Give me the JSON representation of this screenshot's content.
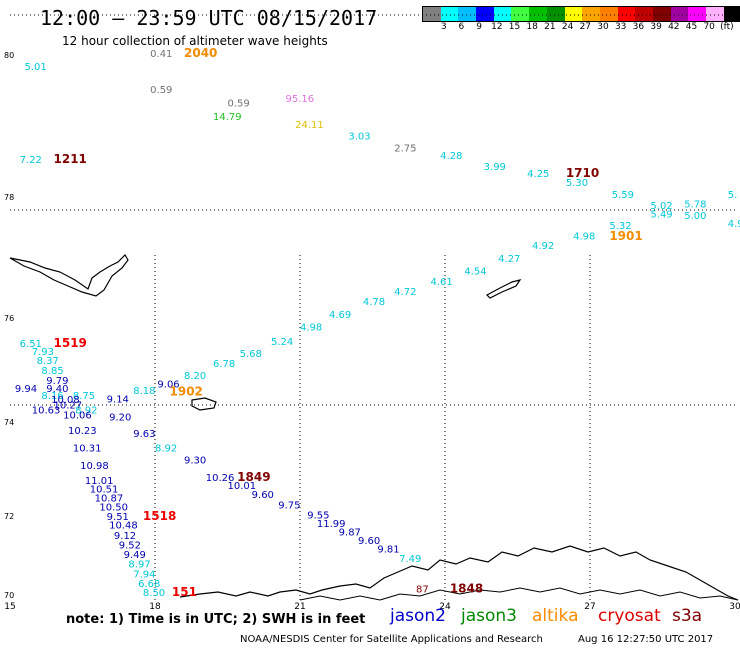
{
  "header": {
    "title": "12:00 – 23:59 UTC 08/15/2017",
    "subtitle": "12 hour collection of altimeter wave heights"
  },
  "colorbar": {
    "colors": [
      "#808080",
      "#00ffff",
      "#00bfff",
      "#0000ff",
      "#00ffff",
      "#40ff40",
      "#00c000",
      "#009000",
      "#ffff00",
      "#ffa500",
      "#ff8000",
      "#ff0000",
      "#c00000",
      "#800000",
      "#a000a0",
      "#ff00ff",
      "#ffb0ff",
      "#000000"
    ],
    "labels": [
      "3",
      "6",
      "9",
      "12",
      "15",
      "18",
      "21",
      "24",
      "27",
      "30",
      "33",
      "36",
      "39",
      "42",
      "45",
      "70",
      "(ft)"
    ]
  },
  "map": {
    "lon_ticks": [
      "15",
      "18",
      "21",
      "24",
      "27",
      "30"
    ],
    "lat_ticks": [
      "70",
      "72",
      "74",
      "76",
      "78",
      "80"
    ],
    "lat_labels_display": [
      "70",
      "72",
      "74",
      "76",
      "78",
      "80"
    ]
  },
  "observations": [
    {
      "t": "5.01",
      "lon": 15.3,
      "lat": 80.95,
      "c": "cyan"
    },
    {
      "t": "0.41",
      "lon": 17.9,
      "lat": 81.3,
      "c": "gray"
    },
    {
      "t": "2040",
      "lon": 18.6,
      "lat": 81.3,
      "c": "orange",
      "b": true
    },
    {
      "t": "0.59",
      "lon": 17.9,
      "lat": 80.4,
      "c": "gray"
    },
    {
      "t": "0.59",
      "lon": 19.5,
      "lat": 80.25,
      "c": "gray"
    },
    {
      "t": "14.79",
      "lon": 19.2,
      "lat": 80.1,
      "c": "green"
    },
    {
      "t": "95.16",
      "lon": 20.7,
      "lat": 80.3,
      "c": "violet"
    },
    {
      "t": "24.11",
      "lon": 20.9,
      "lat": 80.0,
      "c": "yellow"
    },
    {
      "t": "3.03",
      "lon": 22.0,
      "lat": 79.85,
      "c": "cyan"
    },
    {
      "t": "2.75",
      "lon": 22.95,
      "lat": 79.7,
      "c": "gray"
    },
    {
      "t": "4.28",
      "lon": 23.9,
      "lat": 79.6,
      "c": "cyan"
    },
    {
      "t": "3.99",
      "lon": 24.8,
      "lat": 79.45,
      "c": "cyan"
    },
    {
      "t": "4.25",
      "lon": 25.7,
      "lat": 79.35,
      "c": "cyan"
    },
    {
      "t": "1710",
      "lon": 26.5,
      "lat": 79.35,
      "c": "darkred",
      "b": true
    },
    {
      "t": "5.30",
      "lon": 26.5,
      "lat": 79.22,
      "c": "cyan"
    },
    {
      "t": "5.59",
      "lon": 27.45,
      "lat": 79.05,
      "c": "cyan"
    },
    {
      "t": "5.02",
      "lon": 28.25,
      "lat": 78.9,
      "c": "cyan"
    },
    {
      "t": "5.78",
      "lon": 28.95,
      "lat": 78.92,
      "c": "cyan"
    },
    {
      "t": "5.49",
      "lon": 28.25,
      "lat": 78.78,
      "c": "cyan"
    },
    {
      "t": "5.00",
      "lon": 28.95,
      "lat": 78.76,
      "c": "cyan"
    },
    {
      "t": "5.",
      "lon": 29.85,
      "lat": 79.05,
      "c": "cyan"
    },
    {
      "t": "4.9",
      "lon": 29.85,
      "lat": 78.65,
      "c": "cyan"
    },
    {
      "t": "7.22",
      "lon": 15.2,
      "lat": 79.55,
      "c": "cyan"
    },
    {
      "t": "1211",
      "lon": 15.9,
      "lat": 79.55,
      "c": "darkred",
      "b": true
    },
    {
      "t": "5.32",
      "lon": 27.4,
      "lat": 78.62,
      "c": "cyan"
    },
    {
      "t": "1901",
      "lon": 27.4,
      "lat": 78.47,
      "c": "orange",
      "b": true
    },
    {
      "t": "4.98",
      "lon": 26.65,
      "lat": 78.48,
      "c": "cyan"
    },
    {
      "t": "4.92",
      "lon": 25.8,
      "lat": 78.32,
      "c": "cyan"
    },
    {
      "t": "4.27",
      "lon": 25.1,
      "lat": 78.1,
      "c": "cyan"
    },
    {
      "t": "4.54",
      "lon": 24.4,
      "lat": 77.95,
      "c": "cyan"
    },
    {
      "t": "4.61",
      "lon": 23.7,
      "lat": 77.82,
      "c": "cyan"
    },
    {
      "t": "4.72",
      "lon": 22.95,
      "lat": 77.7,
      "c": "cyan"
    },
    {
      "t": "4.78",
      "lon": 22.3,
      "lat": 77.58,
      "c": "cyan"
    },
    {
      "t": "4.69",
      "lon": 21.6,
      "lat": 77.42,
      "c": "cyan"
    },
    {
      "t": "4.98",
      "lon": 21.0,
      "lat": 77.28,
      "c": "cyan"
    },
    {
      "t": "5.24",
      "lon": 20.4,
      "lat": 77.12,
      "c": "cyan"
    },
    {
      "t": "5.68",
      "lon": 19.75,
      "lat": 76.95,
      "c": "cyan"
    },
    {
      "t": "6.78",
      "lon": 19.2,
      "lat": 76.8,
      "c": "cyan"
    },
    {
      "t": "8.20",
      "lon": 18.6,
      "lat": 76.62,
      "c": "cyan"
    },
    {
      "t": "9.06",
      "lon": 18.05,
      "lat": 76.5,
      "c": "blue"
    },
    {
      "t": "8.18",
      "lon": 17.55,
      "lat": 76.4,
      "c": "cyan"
    },
    {
      "t": "1902",
      "lon": 18.3,
      "lat": 76.38,
      "c": "orange",
      "b": true
    },
    {
      "t": "9.14",
      "lon": 17.0,
      "lat": 76.28,
      "c": "blue"
    },
    {
      "t": "6.51",
      "lon": 15.2,
      "lat": 77.1,
      "c": "cyan"
    },
    {
      "t": "1519",
      "lon": 15.9,
      "lat": 77.1,
      "c": "red",
      "b": true
    },
    {
      "t": "7.93",
      "lon": 15.45,
      "lat": 76.98,
      "c": "cyan"
    },
    {
      "t": "8.37",
      "lon": 15.55,
      "lat": 76.85,
      "c": "cyan"
    },
    {
      "t": "8.85",
      "lon": 15.65,
      "lat": 76.7,
      "c": "cyan"
    },
    {
      "t": "9.79",
      "lon": 15.75,
      "lat": 76.55,
      "c": "blue"
    },
    {
      "t": "9.94",
      "lon": 15.1,
      "lat": 76.43,
      "c": "blue"
    },
    {
      "t": "9.40",
      "lon": 15.75,
      "lat": 76.43,
      "c": "blue"
    },
    {
      "t": "8.75",
      "lon": 16.3,
      "lat": 76.33,
      "c": "cyan"
    },
    {
      "t": "8.16",
      "lon": 15.65,
      "lat": 76.33,
      "c": "cyan"
    },
    {
      "t": "10.08",
      "lon": 15.85,
      "lat": 76.27,
      "c": "blue"
    },
    {
      "t": "10.27",
      "lon": 15.9,
      "lat": 76.19,
      "c": "blue"
    },
    {
      "t": "8.92",
      "lon": 16.35,
      "lat": 76.12,
      "c": "cyan"
    },
    {
      "t": "10.63",
      "lon": 15.45,
      "lat": 76.12,
      "c": "blue"
    },
    {
      "t": "10.06",
      "lon": 16.1,
      "lat": 76.05,
      "c": "blue"
    },
    {
      "t": "9.20",
      "lon": 17.05,
      "lat": 76.02,
      "c": "blue"
    },
    {
      "t": "10.23",
      "lon": 16.2,
      "lat": 75.92,
      "c": "blue"
    },
    {
      "t": "9.63",
      "lon": 17.55,
      "lat": 75.9,
      "c": "blue"
    },
    {
      "t": "10.31",
      "lon": 16.3,
      "lat": 75.8,
      "c": "blue"
    },
    {
      "t": "8.92",
      "lon": 18.0,
      "lat": 75.8,
      "c": "cyan"
    },
    {
      "t": "9.30",
      "lon": 18.6,
      "lat": 75.72,
      "c": "blue"
    },
    {
      "t": "10.98",
      "lon": 16.45,
      "lat": 75.68,
      "c": "blue"
    },
    {
      "t": "11.01",
      "lon": 16.55,
      "lat": 75.56,
      "c": "blue"
    },
    {
      "t": "10.26",
      "lon": 19.05,
      "lat": 75.6,
      "c": "blue"
    },
    {
      "t": "1849",
      "lon": 19.7,
      "lat": 75.6,
      "c": "darkred",
      "b": true
    },
    {
      "t": "10.51",
      "lon": 16.65,
      "lat": 75.45,
      "c": "blue"
    },
    {
      "t": "10.01",
      "lon": 19.5,
      "lat": 75.5,
      "c": "blue"
    },
    {
      "t": "10.87",
      "lon": 16.75,
      "lat": 75.34,
      "c": "blue"
    },
    {
      "t": "9.60",
      "lon": 20.0,
      "lat": 75.38,
      "c": "blue"
    },
    {
      "t": "10.50",
      "lon": 16.85,
      "lat": 75.22,
      "c": "blue"
    },
    {
      "t": "9.75",
      "lon": 20.55,
      "lat": 75.25,
      "c": "blue"
    },
    {
      "t": "9.51",
      "lon": 17.0,
      "lat": 75.1,
      "c": "blue"
    },
    {
      "t": "1518",
      "lon": 17.75,
      "lat": 75.1,
      "c": "red",
      "b": true
    },
    {
      "t": "9.55",
      "lon": 21.15,
      "lat": 75.12,
      "c": "blue"
    },
    {
      "t": "10.48",
      "lon": 17.05,
      "lat": 75.0,
      "c": "blue"
    },
    {
      "t": "11.99",
      "lon": 21.35,
      "lat": 75.02,
      "c": "blue"
    },
    {
      "t": "9.12",
      "lon": 17.15,
      "lat": 74.88,
      "c": "blue"
    },
    {
      "t": "9.87",
      "lon": 21.8,
      "lat": 74.92,
      "c": "blue"
    },
    {
      "t": "9.52",
      "lon": 17.25,
      "lat": 74.77,
      "c": "blue"
    },
    {
      "t": "9.60",
      "lon": 22.2,
      "lat": 74.82,
      "c": "blue"
    },
    {
      "t": "9.49",
      "lon": 17.35,
      "lat": 74.66,
      "c": "blue"
    },
    {
      "t": "9.81",
      "lon": 22.6,
      "lat": 74.72,
      "c": "blue"
    },
    {
      "t": "8.97",
      "lon": 17.45,
      "lat": 74.55,
      "c": "cyan"
    },
    {
      "t": "7.49",
      "lon": 23.05,
      "lat": 74.61,
      "c": "cyan"
    },
    {
      "t": "7.94",
      "lon": 17.55,
      "lat": 74.44,
      "c": "cyan"
    },
    {
      "t": "6.68",
      "lon": 17.65,
      "lat": 74.33,
      "c": "cyan"
    },
    {
      "t": "8.50",
      "lon": 17.75,
      "lat": 74.23,
      "c": "cyan"
    },
    {
      "t": "151",
      "lon": 18.35,
      "lat": 74.23,
      "c": "red",
      "b": true
    },
    {
      "t": "87",
      "lon": 23.4,
      "lat": 74.27,
      "c": "darkred"
    },
    {
      "t": "1848",
      "lon": 24.1,
      "lat": 74.27,
      "c": "darkred",
      "b": true
    }
  ],
  "legend": {
    "note": "note: 1) Time is in UTC; 2) SWH is in feet",
    "satellites": [
      {
        "name": "jason2",
        "color": "#0000cc"
      },
      {
        "name": "jason3",
        "color": "#008800"
      },
      {
        "name": "altika",
        "color": "#ff8c00"
      },
      {
        "name": "cryosat",
        "color": "#dd0000"
      },
      {
        "name": "s3a",
        "color": "#800000"
      }
    ]
  },
  "footer": {
    "credit": "NOAA/NESDIS Center for Satellite Applications and Research",
    "timestamp": "Aug 16 12:27:50 UTC 2017"
  }
}
